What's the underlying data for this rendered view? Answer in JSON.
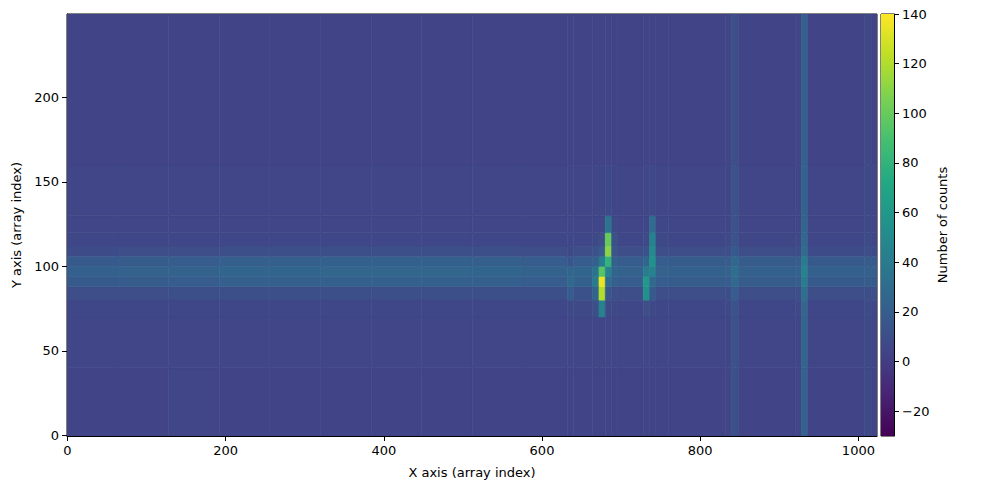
{
  "chart_data": {
    "type": "heatmap",
    "xlabel": "X axis (array index)",
    "ylabel": "Y axis (array index)",
    "xlim": [
      -0.5,
      1023.5
    ],
    "ylim": [
      -0.5,
      249.5
    ],
    "xticks": [
      0,
      200,
      400,
      600,
      800,
      1000
    ],
    "yticks": [
      0,
      50,
      100,
      150,
      200
    ],
    "grid": false,
    "x_edges": [
      -0.5,
      64,
      128,
      192,
      256,
      320,
      384,
      448,
      512,
      576,
      632,
      640,
      664,
      672,
      680,
      688,
      696,
      728,
      736,
      744,
      760,
      832,
      840,
      848,
      920,
      928,
      936,
      1008,
      1016,
      1023.5
    ],
    "y_edges": [
      -0.5,
      40,
      70,
      80,
      88,
      94,
      100,
      106,
      112,
      120,
      130,
      160,
      249.5
    ],
    "cells": [
      [
        4,
        4,
        5,
        4,
        4,
        4,
        4,
        4,
        4,
        4,
        4,
        4,
        4,
        4,
        4,
        4,
        4,
        4,
        4,
        4,
        4,
        5,
        12,
        4,
        5,
        24,
        4,
        8,
        4
      ],
      [
        5,
        5,
        5,
        5,
        5,
        5,
        5,
        5,
        5,
        5,
        5,
        5,
        5,
        5,
        5,
        5,
        5,
        5,
        5,
        5,
        5,
        6,
        13,
        5,
        6,
        25,
        5,
        8,
        5
      ],
      [
        6,
        6,
        6,
        6,
        6,
        6,
        6,
        6,
        6,
        6,
        8,
        7,
        10,
        45,
        8,
        7,
        6,
        10,
        7,
        6,
        6,
        7,
        14,
        6,
        7,
        26,
        6,
        9,
        6
      ],
      [
        10,
        10,
        11,
        11,
        11,
        11,
        11,
        11,
        11,
        11,
        20,
        12,
        25,
        120,
        15,
        11,
        10,
        55,
        18,
        10,
        10,
        11,
        20,
        10,
        11,
        32,
        10,
        11,
        10
      ],
      [
        18,
        19,
        20,
        21,
        21,
        22,
        22,
        22,
        21,
        20,
        28,
        22,
        40,
        135,
        30,
        22,
        20,
        60,
        28,
        20,
        19,
        20,
        28,
        19,
        20,
        40,
        18,
        19,
        18
      ],
      [
        22,
        23,
        24,
        25,
        25,
        26,
        26,
        26,
        25,
        24,
        25,
        25,
        35,
        95,
        45,
        25,
        23,
        40,
        45,
        23,
        22,
        23,
        32,
        22,
        23,
        45,
        22,
        22,
        21
      ],
      [
        18,
        19,
        20,
        21,
        21,
        22,
        22,
        22,
        21,
        20,
        15,
        20,
        22,
        40,
        80,
        22,
        20,
        25,
        55,
        20,
        19,
        20,
        28,
        19,
        20,
        40,
        18,
        19,
        18
      ],
      [
        9,
        10,
        10,
        11,
        11,
        11,
        11,
        11,
        11,
        10,
        8,
        10,
        12,
        20,
        110,
        15,
        10,
        12,
        50,
        10,
        10,
        10,
        18,
        10,
        10,
        30,
        9,
        10,
        9
      ],
      [
        6,
        6,
        6,
        6,
        6,
        6,
        6,
        6,
        6,
        6,
        6,
        6,
        7,
        10,
        100,
        12,
        6,
        8,
        45,
        8,
        6,
        7,
        14,
        6,
        7,
        27,
        6,
        9,
        6
      ],
      [
        5,
        5,
        5,
        5,
        5,
        5,
        5,
        5,
        5,
        5,
        5,
        5,
        5,
        6,
        35,
        8,
        5,
        6,
        30,
        6,
        5,
        6,
        13,
        5,
        6,
        25,
        5,
        8,
        5
      ],
      [
        5,
        5,
        5,
        5,
        5,
        5,
        5,
        5,
        5,
        5,
        5,
        5,
        5,
        5,
        8,
        5,
        5,
        5,
        8,
        5,
        5,
        6,
        13,
        5,
        6,
        24,
        5,
        8,
        5
      ],
      [
        4,
        4,
        4,
        4,
        4,
        4,
        4,
        4,
        4,
        4,
        4,
        4,
        4,
        4,
        4,
        4,
        4,
        4,
        4,
        4,
        4,
        5,
        11,
        4,
        5,
        22,
        4,
        7,
        4
      ]
    ],
    "colorbar": {
      "label": "Number of counts",
      "range": [
        -30,
        140
      ],
      "ticks": [
        {
          "value": -20,
          "label": "−20"
        },
        0,
        20,
        40,
        60,
        80,
        100,
        120,
        140
      ]
    }
  }
}
